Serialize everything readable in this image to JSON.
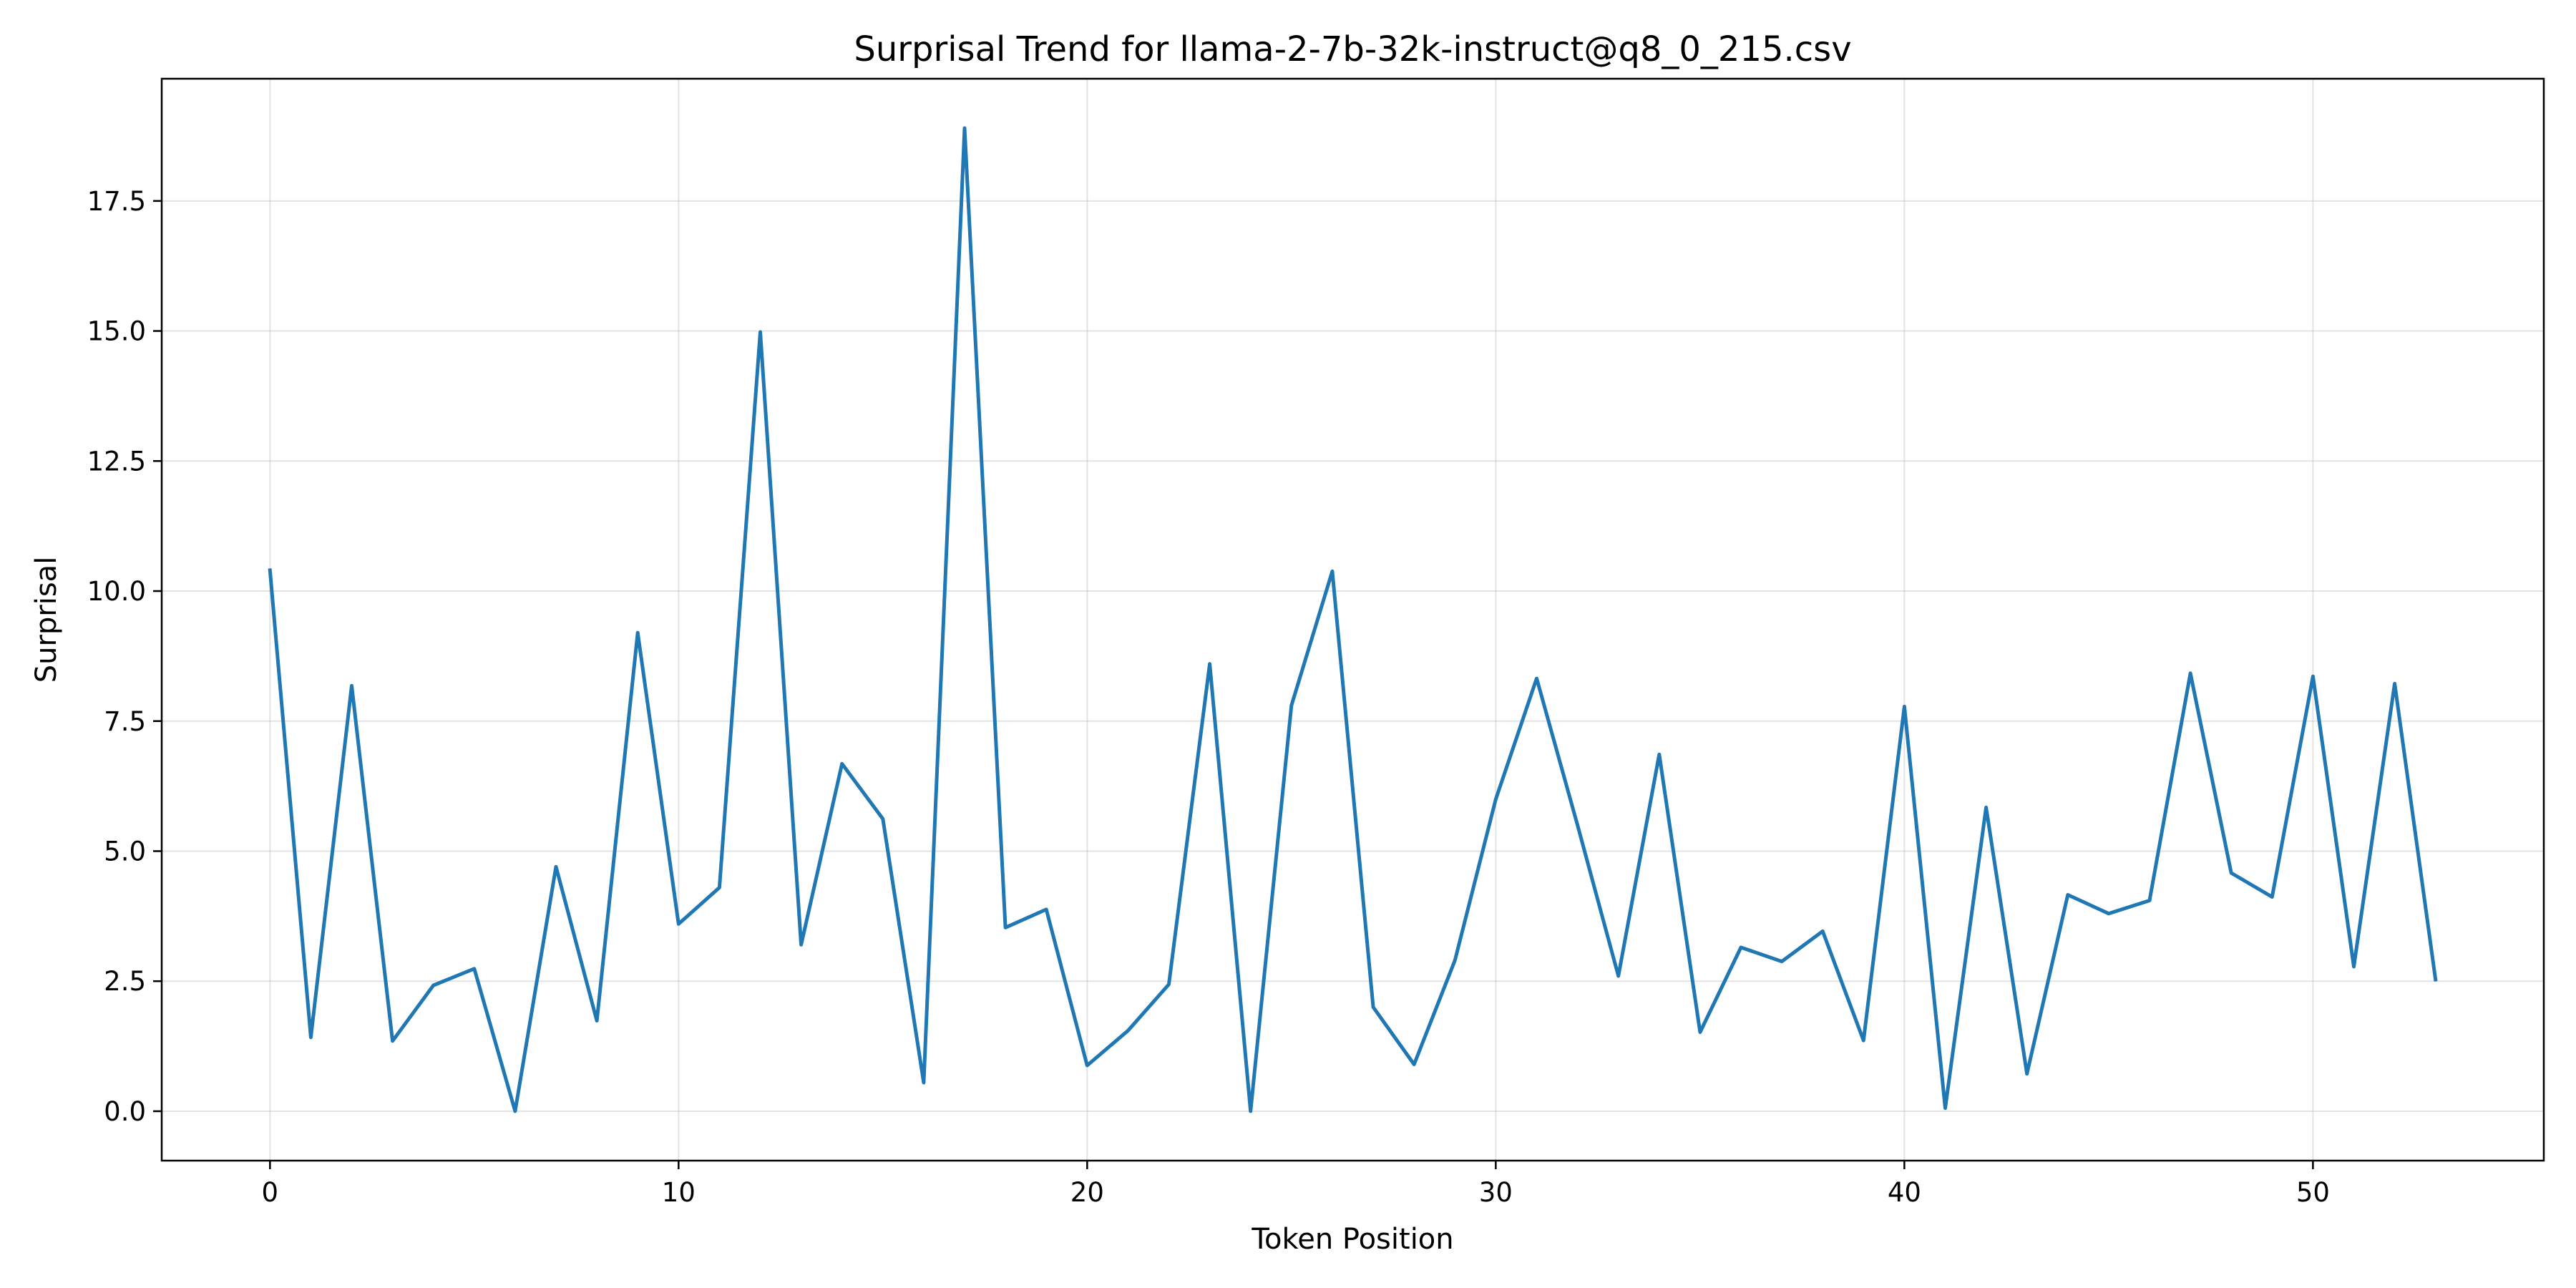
{
  "chart_data": {
    "type": "line",
    "title": "Surprisal Trend for llama-2-7b-32k-instruct@q8_0_215.csv",
    "xlabel": "Token Position",
    "ylabel": "Surprisal",
    "xlim": [
      -2.65,
      55.65
    ],
    "ylim": [
      -0.95,
      19.85
    ],
    "xticks": [
      0,
      10,
      20,
      30,
      40,
      50
    ],
    "yticks": [
      0.0,
      2.5,
      5.0,
      7.5,
      10.0,
      12.5,
      15.0,
      17.5
    ],
    "ytick_labels": [
      "0.0",
      "2.5",
      "5.0",
      "7.5",
      "10.0",
      "12.5",
      "15.0",
      "17.5"
    ],
    "grid": true,
    "line_color": "#1f77b4",
    "x": [
      0,
      1,
      2,
      3,
      4,
      5,
      6,
      7,
      8,
      9,
      10,
      11,
      12,
      13,
      14,
      15,
      16,
      17,
      18,
      19,
      20,
      21,
      22,
      23,
      24,
      25,
      26,
      27,
      28,
      29,
      30,
      31,
      32,
      33,
      34,
      35,
      36,
      37,
      38,
      39,
      40,
      41,
      42,
      43,
      44,
      45,
      46,
      47,
      48,
      49,
      50,
      51,
      52,
      53
    ],
    "y": [
      10.4,
      1.42,
      8.18,
      1.35,
      2.42,
      2.74,
      0.0,
      4.7,
      1.74,
      9.2,
      3.6,
      4.3,
      14.98,
      3.2,
      6.68,
      5.62,
      0.55,
      18.9,
      3.53,
      3.88,
      0.88,
      1.55,
      2.44,
      8.6,
      0.0,
      7.8,
      10.38,
      2.0,
      0.9,
      2.9,
      6.0,
      8.32,
      5.5,
      2.6,
      6.86,
      1.52,
      3.15,
      2.88,
      3.46,
      1.36,
      7.78,
      0.06,
      5.84,
      0.72,
      4.16,
      3.8,
      4.05,
      8.42,
      4.58,
      4.12,
      8.36,
      2.78,
      8.22,
      2.53
    ]
  }
}
